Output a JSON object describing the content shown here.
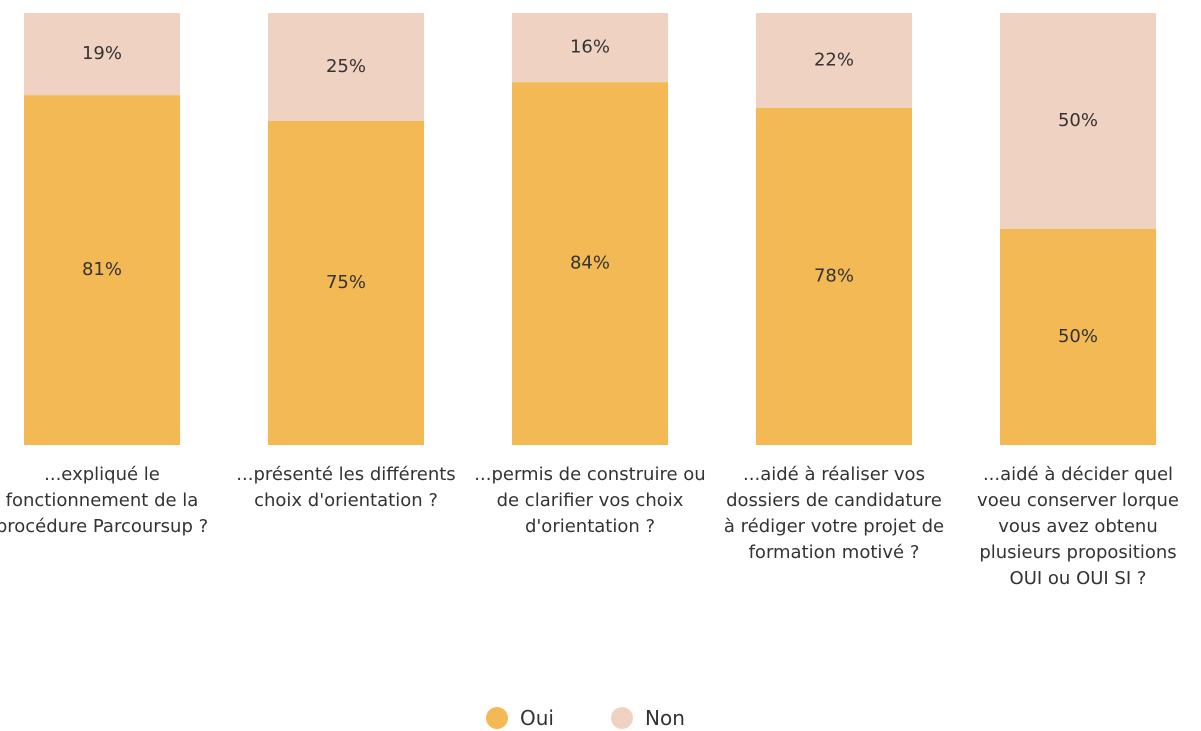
{
  "chart_data": {
    "type": "stacked_bar",
    "categories": [
      "...expliqué le fonctionnement de la procédure Parcoursup ?",
      "...présenté les différents choix d'orientation ?",
      "...permis de construire ou de clarifier vos choix d'orientation ?",
      "...aidé à réaliser vos dossiers de candidature à rédiger votre projet de formation motivé ?",
      "...aidé à décider quel voeu conserver lorque vous avez obtenu plusieurs propositions OUI ou OUI SI ?"
    ],
    "series": [
      {
        "name": "Oui",
        "color": "#f2b954",
        "values": [
          81,
          75,
          84,
          78,
          50
        ],
        "value_labels": [
          "81%",
          "75%",
          "84%",
          "78%",
          "50%"
        ]
      },
      {
        "name": "Non",
        "color": "#f0d2c3",
        "values": [
          19,
          25,
          16,
          22,
          50
        ],
        "value_labels": [
          "19%",
          "25%",
          "16%",
          "22%",
          "50%"
        ]
      }
    ],
    "ylim": [
      0,
      100
    ]
  }
}
